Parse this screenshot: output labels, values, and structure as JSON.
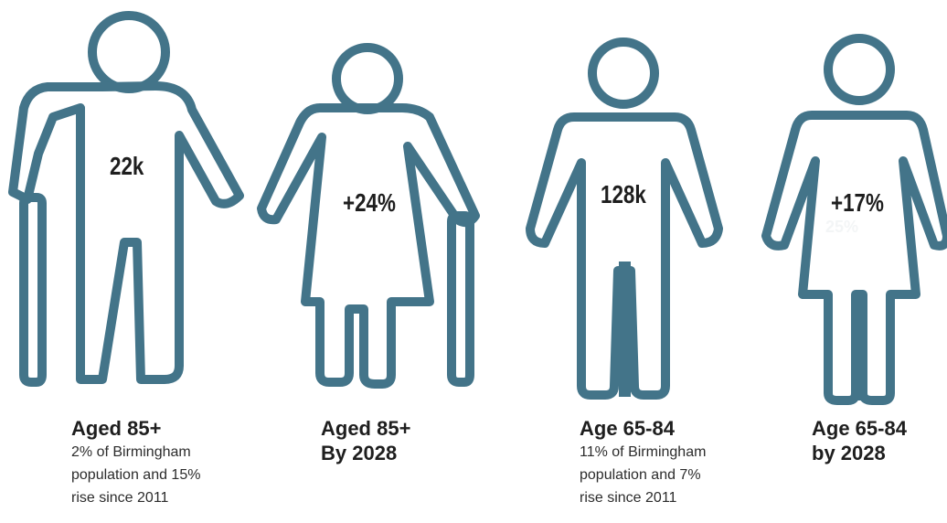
{
  "figures": [
    {
      "stat": "22k",
      "heading": "Aged 85+",
      "description_lines": [
        "2% of Birmingham",
        "population and 15%",
        "rise since 2011"
      ]
    },
    {
      "stat": "+24%",
      "heading_lines": [
        "Aged 85+",
        "By 2028"
      ]
    },
    {
      "stat": "128k",
      "heading": "Age 65-84",
      "description_lines": [
        "11% of Birmingham",
        "population and 7%",
        "rise since 2011"
      ]
    },
    {
      "stat": "+17%",
      "faint_text": "25%",
      "heading_lines": [
        "Age 65-84",
        "by 2028"
      ]
    }
  ],
  "colors": {
    "figure_stroke": "#437489",
    "text": "#1e1e1e",
    "background": "#ffffff"
  },
  "icons": [
    "elderly-man-with-cane-icon",
    "elderly-woman-with-cane-icon",
    "man-icon",
    "woman-icon"
  ]
}
